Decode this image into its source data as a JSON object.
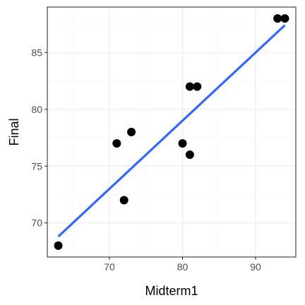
{
  "chart_data": {
    "type": "scatter",
    "title": "",
    "xlabel": "Midterm1",
    "ylabel": "Final",
    "xlim": [
      61.5,
      95.5
    ],
    "ylim": [
      67.0,
      89.0
    ],
    "x_ticks": [
      70,
      80,
      90
    ],
    "y_ticks": [
      70,
      75,
      80,
      85
    ],
    "x_tick_labels": [
      "70",
      "80",
      "90"
    ],
    "y_tick_labels": [
      "70",
      "75",
      "80",
      "85"
    ],
    "grid": true,
    "theme": "bw",
    "colors": {
      "points": "#000000",
      "fit_line": "#3366ff",
      "grid_major": "#ebebeb",
      "grid_minor": "#f5f5f5",
      "panel_border": "#333333"
    },
    "points": [
      {
        "x": 63,
        "y": 68
      },
      {
        "x": 71,
        "y": 77
      },
      {
        "x": 72,
        "y": 72
      },
      {
        "x": 73,
        "y": 78
      },
      {
        "x": 80,
        "y": 77
      },
      {
        "x": 81,
        "y": 76
      },
      {
        "x": 81,
        "y": 82
      },
      {
        "x": 82,
        "y": 82
      },
      {
        "x": 93,
        "y": 88
      },
      {
        "x": 94,
        "y": 88
      }
    ],
    "fit_line": {
      "method": "linear regression",
      "x_start": 63,
      "y_start": 68.8,
      "x_end": 94,
      "y_end": 87.4
    }
  }
}
